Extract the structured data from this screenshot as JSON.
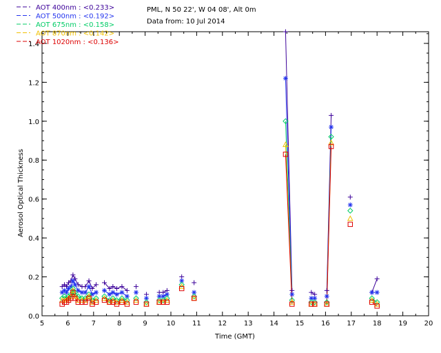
{
  "info": {
    "site": "PML, N 50 22', W 04 08', Alt 0m",
    "date": "Data from: 10 Jul 2014"
  },
  "chart_data": {
    "type": "scatter",
    "title": "",
    "xlabel": "Time (GMT)",
    "ylabel": "Aerosol Optical Thickness",
    "xlim": [
      5,
      20
    ],
    "ylim": [
      0,
      1.46
    ],
    "xticks": [
      "5",
      "6",
      "7",
      "8",
      "9",
      "10",
      "11",
      "12",
      "13",
      "14",
      "15",
      "16",
      "17",
      "18",
      "19",
      "20"
    ],
    "yticks": [
      "0.0",
      "0.2",
      "0.4",
      "0.6",
      "0.8",
      "1.0",
      "1.2",
      "1.4"
    ],
    "grid": false,
    "legend_position": "top-left outside",
    "x": [
      5.78,
      5.87,
      5.95,
      6.03,
      6.12,
      6.2,
      6.28,
      6.4,
      6.55,
      6.68,
      6.82,
      6.95,
      7.1,
      7.42,
      7.62,
      7.75,
      7.9,
      8.1,
      8.3,
      8.65,
      9.05,
      9.55,
      9.7,
      9.85,
      10.42,
      10.9,
      14.45,
      14.7,
      15.45,
      15.58,
      16.05,
      16.22,
      16.96,
      17.8,
      18.0
    ],
    "series": [
      {
        "name": "AOT  400nm : <0.233>",
        "color": "#3b0099",
        "marker": "+",
        "values": [
          0.15,
          0.16,
          0.15,
          0.17,
          0.18,
          0.21,
          0.19,
          0.16,
          0.15,
          0.15,
          0.18,
          0.14,
          0.16,
          0.17,
          0.14,
          0.15,
          0.14,
          0.15,
          0.13,
          0.15,
          0.11,
          0.12,
          0.12,
          0.13,
          0.2,
          0.17,
          1.46,
          0.13,
          0.12,
          0.11,
          0.13,
          1.03,
          0.61,
          0.12,
          0.19
        ]
      },
      {
        "name": "AOT  500nm : <0.192>",
        "color": "#2233ee",
        "marker": "*",
        "values": [
          0.12,
          0.13,
          0.12,
          0.14,
          0.15,
          0.18,
          0.16,
          0.13,
          0.12,
          0.12,
          0.15,
          0.11,
          0.12,
          0.13,
          0.11,
          0.12,
          0.11,
          0.12,
          0.1,
          0.12,
          0.09,
          0.1,
          0.1,
          0.11,
          0.18,
          0.12,
          1.22,
          0.11,
          0.09,
          0.09,
          0.1,
          0.97,
          0.57,
          0.12,
          0.12
        ]
      },
      {
        "name": "AOT  675nm : <0.158>",
        "color": "#00cc66",
        "marker": "diamond",
        "values": [
          0.09,
          0.1,
          0.09,
          0.1,
          0.11,
          0.14,
          0.12,
          0.1,
          0.09,
          0.09,
          0.11,
          0.08,
          0.09,
          0.1,
          0.08,
          0.09,
          0.08,
          0.09,
          0.08,
          0.09,
          0.07,
          0.08,
          0.08,
          0.09,
          0.16,
          0.1,
          1.0,
          0.08,
          0.07,
          0.07,
          0.07,
          0.92,
          0.54,
          0.09,
          0.07
        ]
      },
      {
        "name": "AOT  870nm : <0.142>",
        "color": "#f0c000",
        "marker": "triangle",
        "values": [
          0.08,
          0.08,
          0.08,
          0.09,
          0.1,
          0.13,
          0.1,
          0.08,
          0.08,
          0.08,
          0.1,
          0.07,
          0.08,
          0.09,
          0.07,
          0.08,
          0.07,
          0.08,
          0.07,
          0.08,
          0.06,
          0.07,
          0.07,
          0.08,
          0.15,
          0.09,
          0.88,
          0.07,
          0.06,
          0.06,
          0.06,
          0.89,
          0.5,
          0.08,
          0.06
        ]
      },
      {
        "name": "AOT 1020nm : <0.136>",
        "color": "#dd0000",
        "marker": "square",
        "values": [
          0.06,
          0.07,
          0.07,
          0.08,
          0.09,
          0.12,
          0.09,
          0.07,
          0.07,
          0.07,
          0.09,
          0.06,
          0.07,
          0.08,
          0.07,
          0.07,
          0.06,
          0.07,
          0.06,
          0.07,
          0.06,
          0.07,
          0.07,
          0.07,
          0.14,
          0.09,
          0.83,
          0.06,
          0.06,
          0.06,
          0.06,
          0.87,
          0.47,
          0.07,
          0.05
        ]
      }
    ]
  }
}
